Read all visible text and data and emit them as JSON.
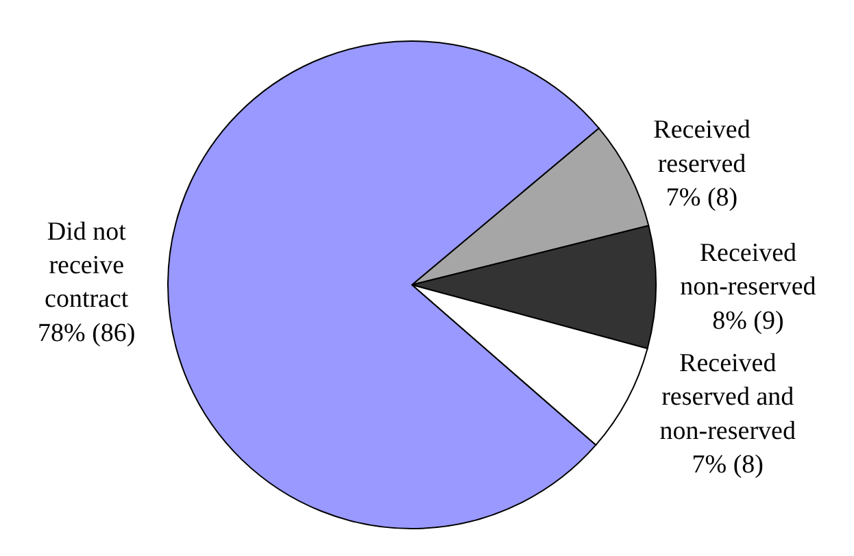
{
  "chart_data": {
    "type": "pie",
    "categories": [
      "Received\nreserved",
      "Received\nnon-reserved",
      "Received\nreserved and\nnon-reserved",
      "Did not\nreceive\ncontract"
    ],
    "values": [
      8,
      9,
      8,
      86
    ],
    "value_labels": [
      "7% (8)",
      "8% (9)",
      "7% (8)",
      "78% (86)"
    ],
    "colors": [
      "#a6a6a6",
      "#333333",
      "#ffffff",
      "#9999ff"
    ],
    "legend": false
  }
}
